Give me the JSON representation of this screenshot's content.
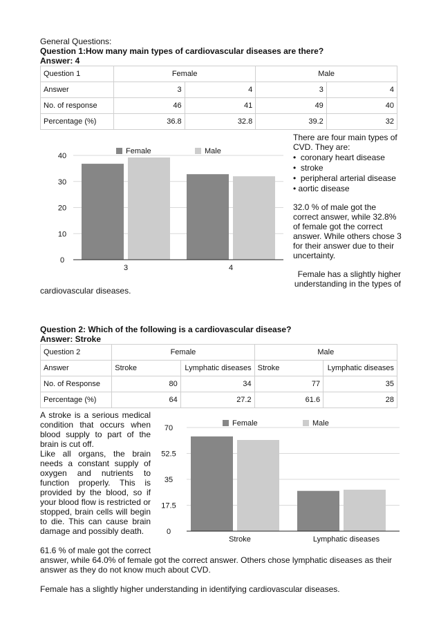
{
  "heading": {
    "general": "General Questions:",
    "q1_title": "Question 1:How many main types of cardiovascular diseases are there?",
    "q1_answer": "Answer: 4",
    "q2_title": "Question 2: Which of the following is a cardiovascular disease?",
    "q2_answer": "Answer: Stroke"
  },
  "table1": {
    "header": [
      "Question 1",
      "Female",
      "Male"
    ],
    "rows": [
      [
        "Answer",
        "3",
        "4",
        "3",
        "4"
      ],
      [
        "No. of response",
        "46",
        "41",
        "49",
        "40"
      ],
      [
        "Percentage (%)",
        "36.8",
        "32.8",
        "39.2",
        "32"
      ]
    ]
  },
  "table2": {
    "header": [
      "Question 2",
      "Female",
      "Male"
    ],
    "rows": [
      [
        "Answer",
        "Stroke",
        "Lymphatic diseases",
        "Stroke",
        "Lymphatic diseases"
      ],
      [
        "No. of Response",
        "80",
        "34",
        "77",
        "35"
      ],
      [
        "Percentage (%)",
        "64",
        "27.2",
        "61.6",
        "28"
      ]
    ]
  },
  "q1_side": {
    "lines": [
      "There are four main types of",
      "CVD. They are:"
    ],
    "bullets": [
      "coronary heart disease",
      "stroke",
      "peripheral arterial disease",
      "aortic disease"
    ],
    "para2": [
      "32.0 % of male got the",
      "correct answer, while 32.8%",
      "of female got the correct",
      "answer. While others chose 3",
      "for their answer due to their",
      "uncertainty."
    ],
    "para3": [
      "Female has a slightly higher",
      "understanding in the types of"
    ],
    "para3_cont": "cardiovascular diseases."
  },
  "q2_side": {
    "lines": [
      "A stroke is a serious medical",
      "condition that occurs when the",
      "blood supply to part of the",
      "brain is cut off.",
      "Like all organs, the brain",
      "needs a constant supply of",
      "oxygen and nutrients to",
      "function properly. This is",
      "provided by the blood, so if",
      "your blood flow is restricted or",
      "stopped, brain cells will begin",
      "to die. This can cause brain",
      "damage and possibly death."
    ],
    "bottom1": "61.6 % of male got the correct",
    "bottom2": "answer, while 64.0% of female got the correct answer. Others chose lymphatic diseases as their",
    "bottom3": "answer as they do not know much about CVD.",
    "bottom4": "Female has a slightly higher understanding in identifying cardiovascular diseases."
  },
  "colors": {
    "female": "#868686",
    "male": "#cccccc",
    "grid": "#d9d9d9",
    "axis": "#222222"
  },
  "chart_data": [
    {
      "type": "bar",
      "categories": [
        "3",
        "4"
      ],
      "series": [
        {
          "name": "Female",
          "values": [
            36.8,
            32.8
          ]
        },
        {
          "name": "Male",
          "values": [
            39.2,
            32
          ]
        }
      ],
      "yticks": [
        "0",
        "10",
        "20",
        "30",
        "40"
      ],
      "ylim": [
        0,
        40
      ],
      "legend": "top"
    },
    {
      "type": "bar",
      "categories": [
        "Stroke",
        "Lymphatic diseases"
      ],
      "series": [
        {
          "name": "Female",
          "values": [
            64,
            27.2
          ]
        },
        {
          "name": "Male",
          "values": [
            61.6,
            28
          ]
        }
      ],
      "yticks": [
        "0",
        "17.5",
        "35",
        "52.5",
        "70"
      ],
      "ylim": [
        0,
        70
      ],
      "legend": "top"
    }
  ]
}
